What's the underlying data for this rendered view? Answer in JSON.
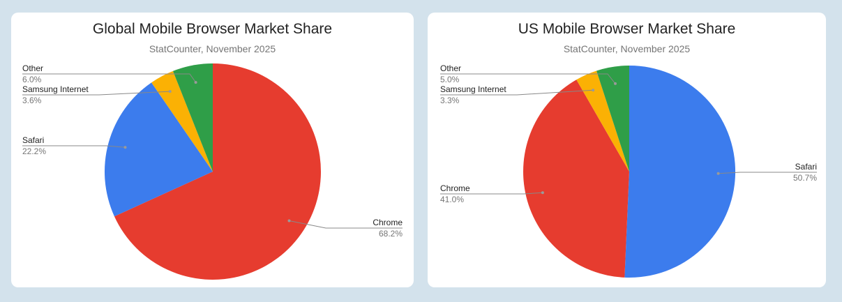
{
  "chart_data": [
    {
      "type": "pie",
      "title": "Global Mobile Browser Market Share",
      "subtitle": "StatCounter, November 2025",
      "slices": [
        {
          "label": "Chrome",
          "value": 68.2,
          "display": "68.2%",
          "color": "#e63c2f"
        },
        {
          "label": "Safari",
          "value": 22.2,
          "display": "22.2%",
          "color": "#3c7ced"
        },
        {
          "label": "Samsung Internet",
          "value": 3.6,
          "display": "3.6%",
          "color": "#fbb104"
        },
        {
          "label": "Other",
          "value": 6.0,
          "display": "6.0%",
          "color": "#2f9e48"
        }
      ]
    },
    {
      "type": "pie",
      "title": "US Mobile Browser Market Share",
      "subtitle": "StatCounter, November 2025",
      "slices": [
        {
          "label": "Safari",
          "value": 50.7,
          "display": "50.7%",
          "color": "#3c7ced"
        },
        {
          "label": "Chrome",
          "value": 41.0,
          "display": "41.0%",
          "color": "#e63c2f"
        },
        {
          "label": "Samsung Internet",
          "value": 3.3,
          "display": "3.3%",
          "color": "#fbb104"
        },
        {
          "label": "Other",
          "value": 5.0,
          "display": "5.0%",
          "color": "#2f9e48"
        }
      ]
    }
  ]
}
